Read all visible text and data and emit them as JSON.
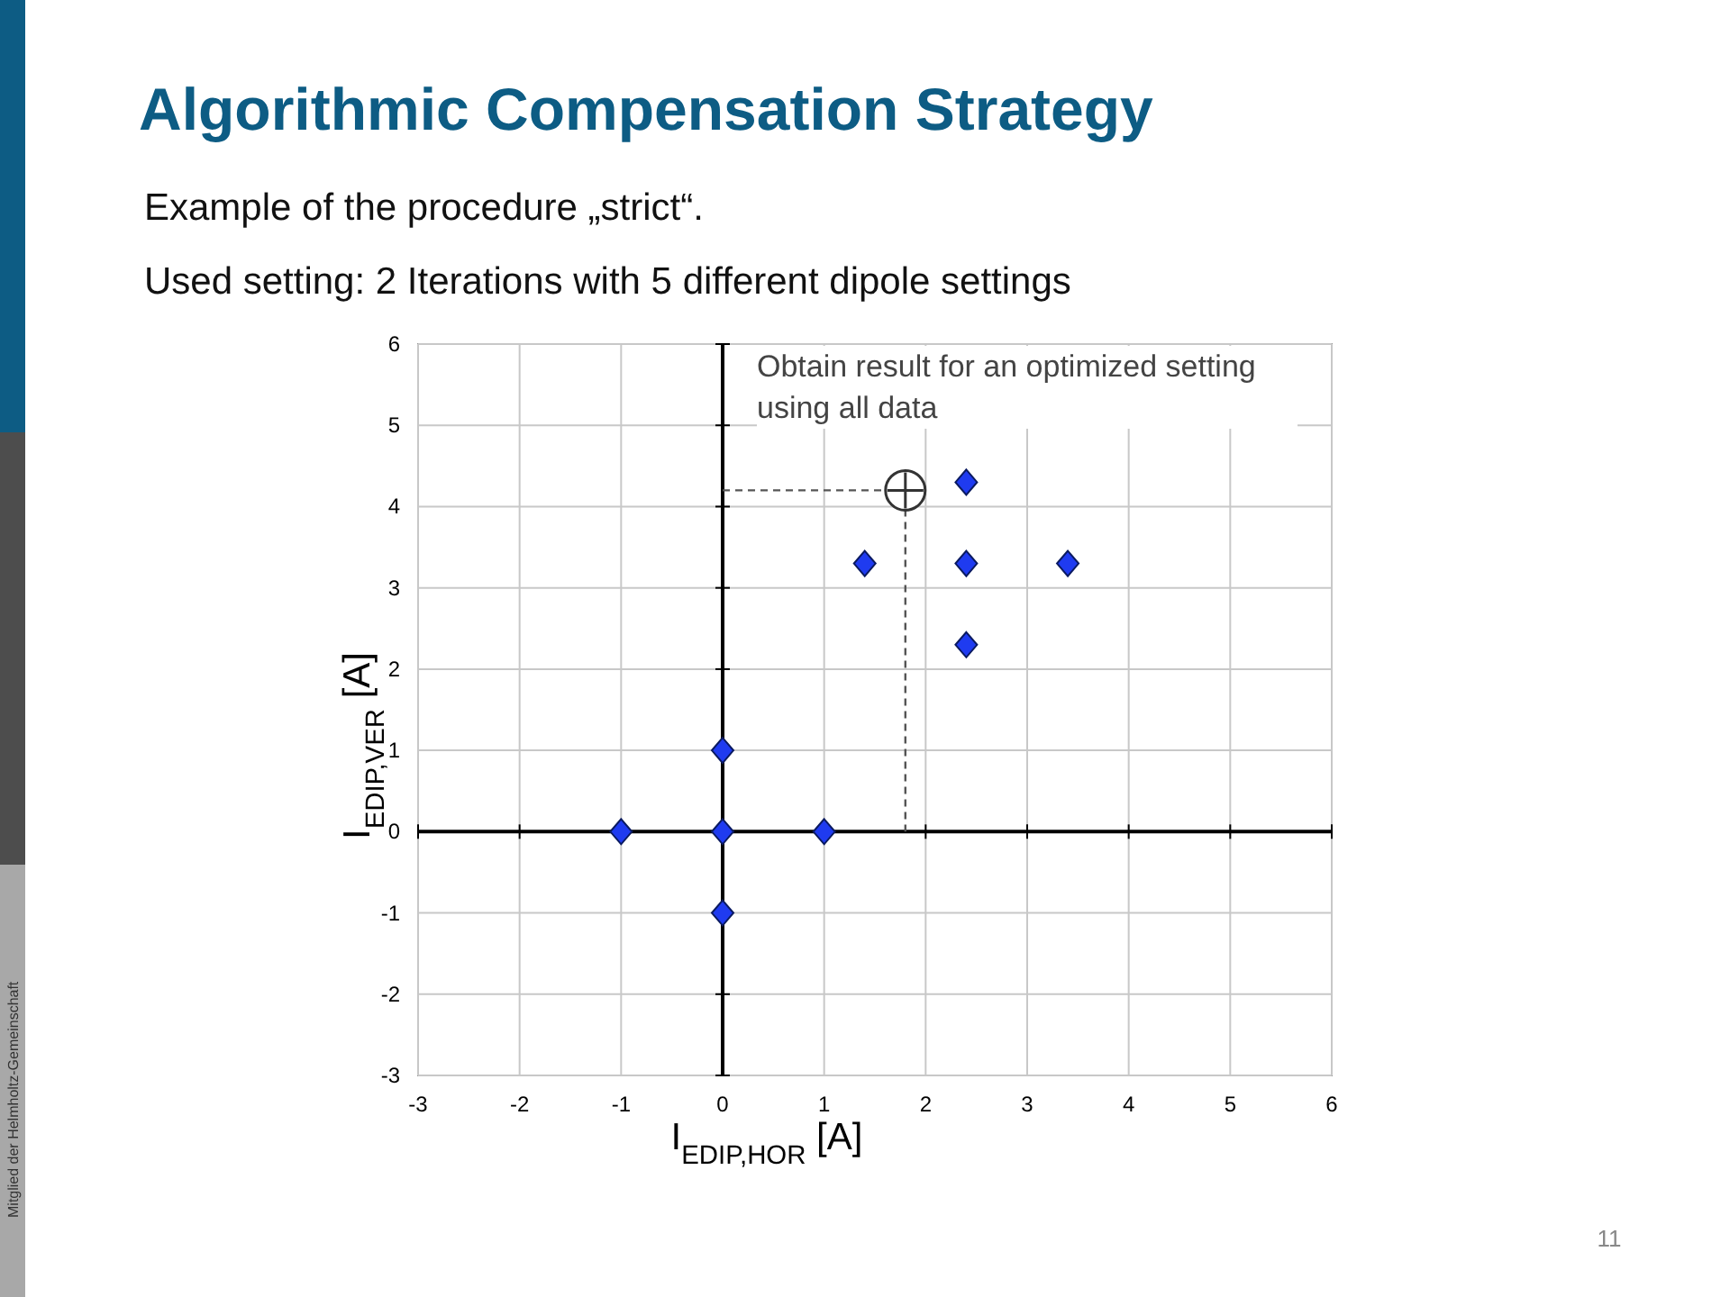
{
  "chart_data": {
    "type": "scatter",
    "title": "Algorithmic Compensation Strategy",
    "subtitle": "Example of the procedure „strict“.",
    "xlabel": "I$_{EDIP,HOR}$ [A]",
    "ylabel": "I$_{EDIP,VER}$ [A]",
    "xlim": [
      -3,
      6
    ],
    "ylim": [
      -3,
      6
    ],
    "xticks": [
      -3,
      -2,
      -1,
      0,
      1,
      2,
      3,
      4,
      5,
      6
    ],
    "yticks": [
      -3,
      -2,
      -1,
      0,
      1,
      2,
      3,
      4,
      5,
      6
    ],
    "grid": true,
    "series": [
      {
        "color": "#1f3bf0",
        "marker": "diamond",
        "x": [
          -1,
          0,
          1,
          0,
          0,
          1.4,
          2.4,
          3.4,
          2.4,
          2.4
        ],
        "values": [
          0,
          0,
          0,
          1,
          -1,
          3.3,
          3.3,
          3.3,
          4.3,
          2.3
        ]
      },
      {
        "type": "line",
        "color": "#555555",
        "line_style": "dashed",
        "marker": "none",
        "x": [
          0,
          1.8,
          1.8
        ],
        "values": [
          4.2,
          4.2,
          0
        ]
      },
      {
        "color": "#333333",
        "marker": "circle",
        "x": [
          1.8
        ],
        "values": [
          4.2
        ]
      }
    ],
    "annotations": [
      "Used setting: 2 Iterations with 5 different dipole settings",
      "Obtain result for an optimized setting using all data",
      "Mitglied der Helmholtz-Gemeinschaft",
      "11"
    ]
  }
}
